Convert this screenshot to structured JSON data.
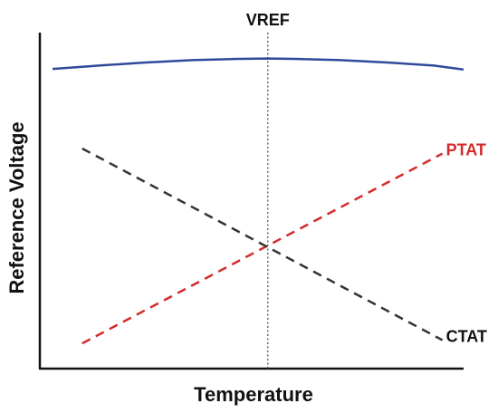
{
  "chart_data": {
    "type": "line",
    "title": "",
    "xlabel": "Temperature",
    "ylabel": "Reference Voltage",
    "xlim": [
      0,
      1
    ],
    "ylim": [
      0,
      1
    ],
    "ticks": "none",
    "grid": false,
    "annotations": {
      "vref_label": "VREF",
      "vref_x": 0.538
    },
    "series": [
      {
        "name": "VREF",
        "color": "#2e4a9a",
        "style": "solid",
        "x": [
          0.03,
          0.14,
          0.25,
          0.36,
          0.47,
          0.538,
          0.6,
          0.71,
          0.82,
          0.93,
          1.0
        ],
        "y": [
          0.892,
          0.902,
          0.911,
          0.918,
          0.922,
          0.923,
          0.922,
          0.918,
          0.911,
          0.902,
          0.89
        ]
      },
      {
        "name": "PTAT",
        "color": "#d42b2b",
        "style": "dashed",
        "x": [
          0.1,
          0.95
        ],
        "y": [
          0.075,
          0.64
        ]
      },
      {
        "name": "CTAT",
        "color": "#333333",
        "style": "dashed",
        "x": [
          0.1,
          0.95
        ],
        "y": [
          0.655,
          0.085
        ]
      }
    ]
  }
}
